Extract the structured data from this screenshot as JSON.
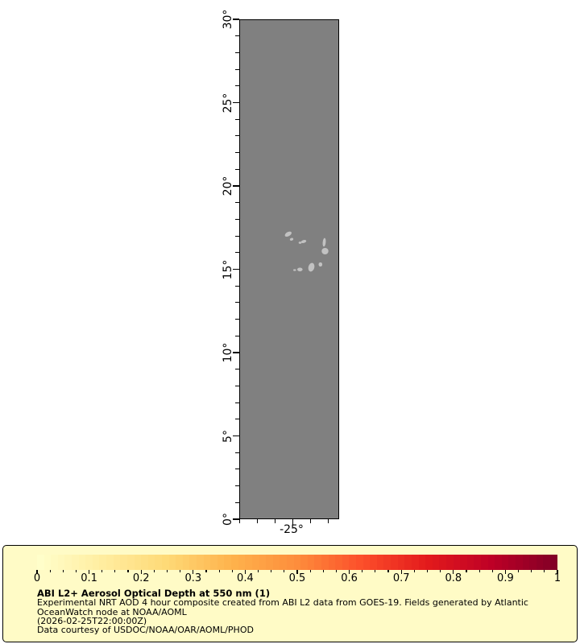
{
  "figure": {
    "map": {
      "background_color": "#808080",
      "frame_color": "#000000",
      "island_color": "#c2c2c2",
      "y_axis": {
        "range": [
          0,
          30
        ],
        "minor_step_deg": 1,
        "major_labels": [
          {
            "value": 0,
            "label": "0°"
          },
          {
            "value": 5,
            "label": "5°"
          },
          {
            "value": 10,
            "label": "10°"
          },
          {
            "value": 15,
            "label": "15°"
          },
          {
            "value": 20,
            "label": "20°"
          },
          {
            "value": 25,
            "label": "25°"
          },
          {
            "value": 30,
            "label": "30°"
          }
        ]
      },
      "x_axis": {
        "tick_values": [
          -28,
          -27,
          -26,
          -25,
          -24,
          -23
        ],
        "labeled_tick": {
          "value": -25,
          "label": "-25°"
        }
      },
      "islands": [
        [
          60.8,
          266.8,
          4.6,
          2.6,
          -30
        ],
        [
          65.0,
          273.3,
          2.2,
          1.6,
          -20
        ],
        [
          75.5,
          277.5,
          1.8,
          1.4,
          0
        ],
        [
          80.0,
          276.0,
          3.3,
          1.8,
          -15
        ],
        [
          105.5,
          277.0,
          1.9,
          5.4,
          6
        ],
        [
          106.5,
          288.0,
          4.2,
          4.0,
          0
        ],
        [
          100.8,
          304.5,
          2.3,
          2.6,
          0
        ],
        [
          89.5,
          308.0,
          3.7,
          5.5,
          15
        ],
        [
          75.3,
          310.8,
          3.3,
          2.3,
          0
        ],
        [
          68.8,
          311.5,
          1.8,
          1.1,
          0
        ]
      ]
    },
    "legend": {
      "background_color": "#fffbc6",
      "border_color": "#000000",
      "colorbar": {
        "colormap_stops": [
          "#ffffcc",
          "#ffeda0",
          "#fed976",
          "#feb24c",
          "#fd8d3c",
          "#fc4e2a",
          "#e31a1c",
          "#bd0026",
          "#800026"
        ],
        "segments": 75,
        "range": [
          0,
          1
        ],
        "major_tick_labels": [
          "0",
          "0.1",
          "0.2",
          "0.3",
          "0.4",
          "0.5",
          "0.6",
          "0.7",
          "0.8",
          "0.9",
          "1"
        ],
        "minor_tick_step": 0.025
      },
      "title": "ABI L2+ Aerosol Optical Depth at 550 nm (1)",
      "caption_lines": [
        "Experimental NRT AOD 4 hour composite created from ABI L2 data from GOES-19. Fields generated by Atlantic",
        "OceanWatch node at NOAA/AOML",
        "(2026-02-25T22:00:00Z)",
        "Data courtesy of USDOC/NOAA/OAR/AOML/PHOD"
      ]
    }
  },
  "chart_data": {
    "type": "heatmap",
    "title": "ABI L2+ Aerosol Optical Depth at 550 nm (1)",
    "colorbar_scale": {
      "min": 0,
      "max": 1,
      "tick_labels": [
        "0",
        "0.1",
        "0.2",
        "0.3",
        "0.4",
        "0.5",
        "0.6",
        "0.7",
        "0.8",
        "0.9",
        "1"
      ]
    },
    "y_tick_labels": [
      "0°",
      "5°",
      "10°",
      "15°",
      "20°",
      "25°",
      "30°"
    ],
    "x_tick_labels": [
      "-25°"
    ],
    "legend_position": "bottom"
  }
}
